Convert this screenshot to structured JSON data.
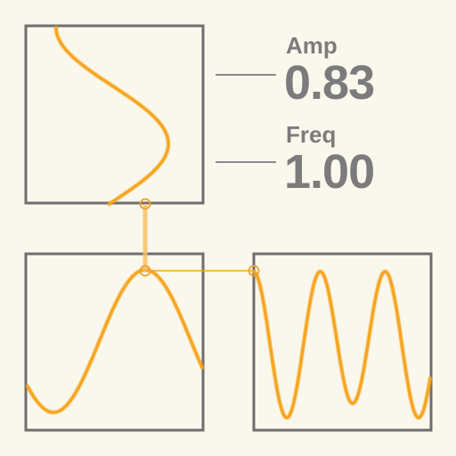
{
  "params": {
    "amp": {
      "label": "Amp",
      "value": "0.83"
    },
    "freq": {
      "label": "Freq",
      "value": "1.00"
    }
  },
  "colors": {
    "background": "#faf7ec",
    "frame": "#6e6e6e",
    "wave": "#f6a41c",
    "text": "#7b7b7b"
  }
}
